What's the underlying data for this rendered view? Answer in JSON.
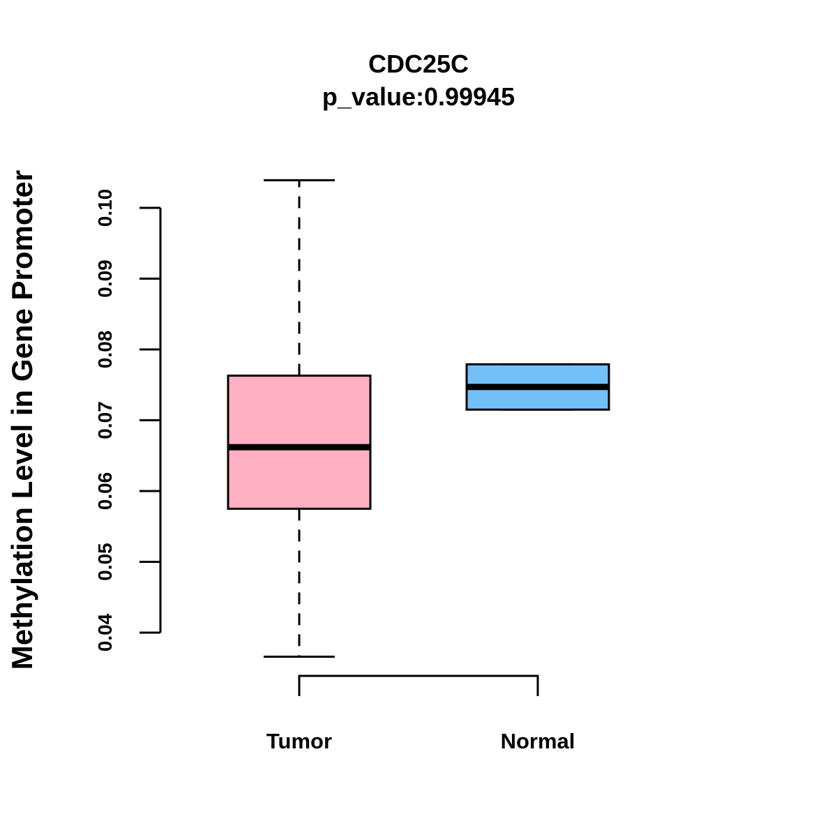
{
  "chart_data": {
    "type": "boxplot",
    "title": "CDC25C",
    "subtitle": "p_value:0.99945",
    "ylabel": "Methylation Level in Gene Promoter",
    "xlabel": "",
    "ylim": [
      0.04,
      0.1
    ],
    "yticks": [
      0.04,
      0.05,
      0.06,
      0.07,
      0.08,
      0.09,
      0.1
    ],
    "ytick_labels": [
      "0.04",
      "0.05",
      "0.06",
      "0.07",
      "0.08",
      "0.09",
      "0.10"
    ],
    "categories": [
      "Tumor",
      "Normal"
    ],
    "boxes": [
      {
        "name": "Tumor",
        "whisker_low": 0.0366,
        "q1": 0.0575,
        "median": 0.0662,
        "q3": 0.0763,
        "whisker_high": 0.1039,
        "color": "#FFB0C2"
      },
      {
        "name": "Normal",
        "whisker_low": 0.0715,
        "q1": 0.0715,
        "median": 0.0747,
        "q3": 0.0779,
        "whisker_high": 0.0779,
        "color": "#73C0F9"
      }
    ],
    "comparison_bracket": [
      "Tumor",
      "Normal"
    ]
  }
}
